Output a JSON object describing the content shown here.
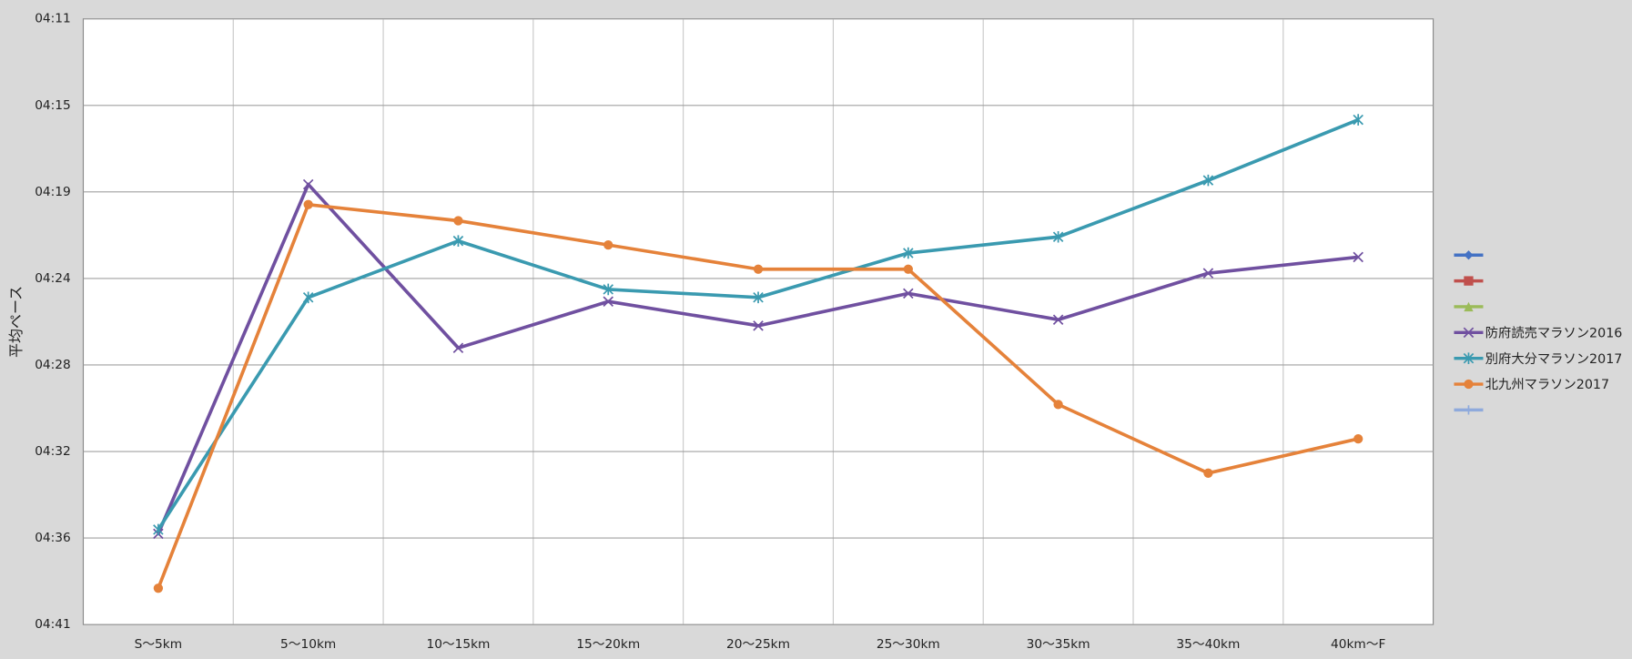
{
  "chart_data": {
    "type": "line",
    "y_label": "平均ペース",
    "categories": [
      "S〜5km",
      "5〜10km",
      "10〜15km",
      "15〜20km",
      "20〜25km",
      "25〜30km",
      "30〜35km",
      "35〜40km",
      "40km〜F"
    ],
    "ylim": [
      251,
      281
    ],
    "y_reversed": true,
    "yticks": [
      {
        "value": 251,
        "label": "04:11"
      },
      {
        "value": 255.29,
        "label": "04:15"
      },
      {
        "value": 259.57,
        "label": "04:19"
      },
      {
        "value": 263.86,
        "label": "04:24"
      },
      {
        "value": 268.14,
        "label": "04:28"
      },
      {
        "value": 272.43,
        "label": "04:32"
      },
      {
        "value": 276.71,
        "label": "04:36"
      },
      {
        "value": 281,
        "label": "04:41"
      }
    ],
    "grid": true,
    "legend": "right",
    "series": [
      {
        "color": "#4472c4",
        "marker": "diamond",
        "values": [
          null,
          null,
          null,
          null,
          null,
          null,
          null,
          null,
          null
        ]
      },
      {
        "color": "#c0504d",
        "marker": "square",
        "values": [
          null,
          null,
          null,
          null,
          null,
          null,
          null,
          null,
          null
        ]
      },
      {
        "color": "#9bbb59",
        "marker": "triangle",
        "values": [
          null,
          null,
          null,
          null,
          null,
          null,
          null,
          null,
          null
        ]
      },
      {
        "name": "防府読売マラソン2016",
        "color": "#7050a0",
        "marker": "x",
        "values": [
          276.5,
          259.2,
          267.3,
          265.0,
          266.2,
          264.6,
          265.9,
          263.6,
          262.8
        ]
      },
      {
        "name": "別府大分マラソン2017",
        "color": "#3a9ab0",
        "marker": "star",
        "values": [
          276.3,
          264.8,
          262.0,
          264.4,
          264.8,
          262.6,
          261.8,
          259.0,
          256.0
        ]
      },
      {
        "name": "北九州マラソン2017",
        "color": "#e5823a",
        "marker": "circle",
        "values": [
          279.2,
          260.2,
          261.0,
          262.2,
          263.4,
          263.4,
          270.1,
          273.5,
          271.8
        ]
      },
      {
        "color": "#8faadc",
        "marker": "plus",
        "values": [
          null,
          null,
          null,
          null,
          null,
          null,
          null,
          null,
          null
        ]
      }
    ]
  }
}
